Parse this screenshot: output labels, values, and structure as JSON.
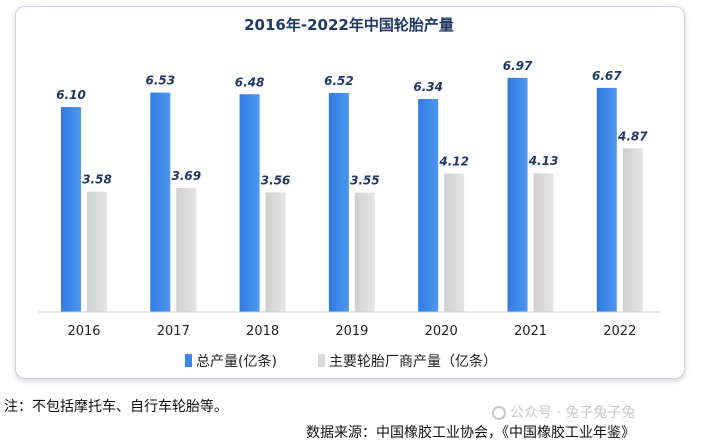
{
  "chart_data": {
    "type": "bar",
    "title": "2016年-2022年中国轮胎产量",
    "categories": [
      "2016",
      "2017",
      "2018",
      "2019",
      "2020",
      "2021",
      "2022"
    ],
    "series": [
      {
        "name": "总产量(亿条)",
        "values": [
          6.1,
          6.53,
          6.48,
          6.52,
          6.34,
          6.97,
          6.67
        ],
        "labels": [
          "6.10",
          "6.53",
          "6.48",
          "6.52",
          "6.34",
          "6.97",
          "6.67"
        ],
        "color": "#3b86e6"
      },
      {
        "name": "主要轮胎厂商产量（亿条）",
        "values": [
          3.58,
          3.69,
          3.56,
          3.55,
          4.12,
          4.13,
          4.87
        ],
        "labels": [
          "3.58",
          "3.69",
          "3.56",
          "3.55",
          "4.12",
          "4.13",
          "4.87"
        ],
        "color": "#d9d9d9"
      }
    ],
    "ylim": [
      0,
      7.5
    ],
    "xlabel": "",
    "ylabel": "",
    "legend": "bottom",
    "grid": false
  },
  "footnote": "注：不包括摩托车、自行车轮胎等。",
  "source": "数据来源：中国橡胶工业协会，《中国橡胶工业年鉴》",
  "watermark": "公众号 · 兔子兔子兔"
}
